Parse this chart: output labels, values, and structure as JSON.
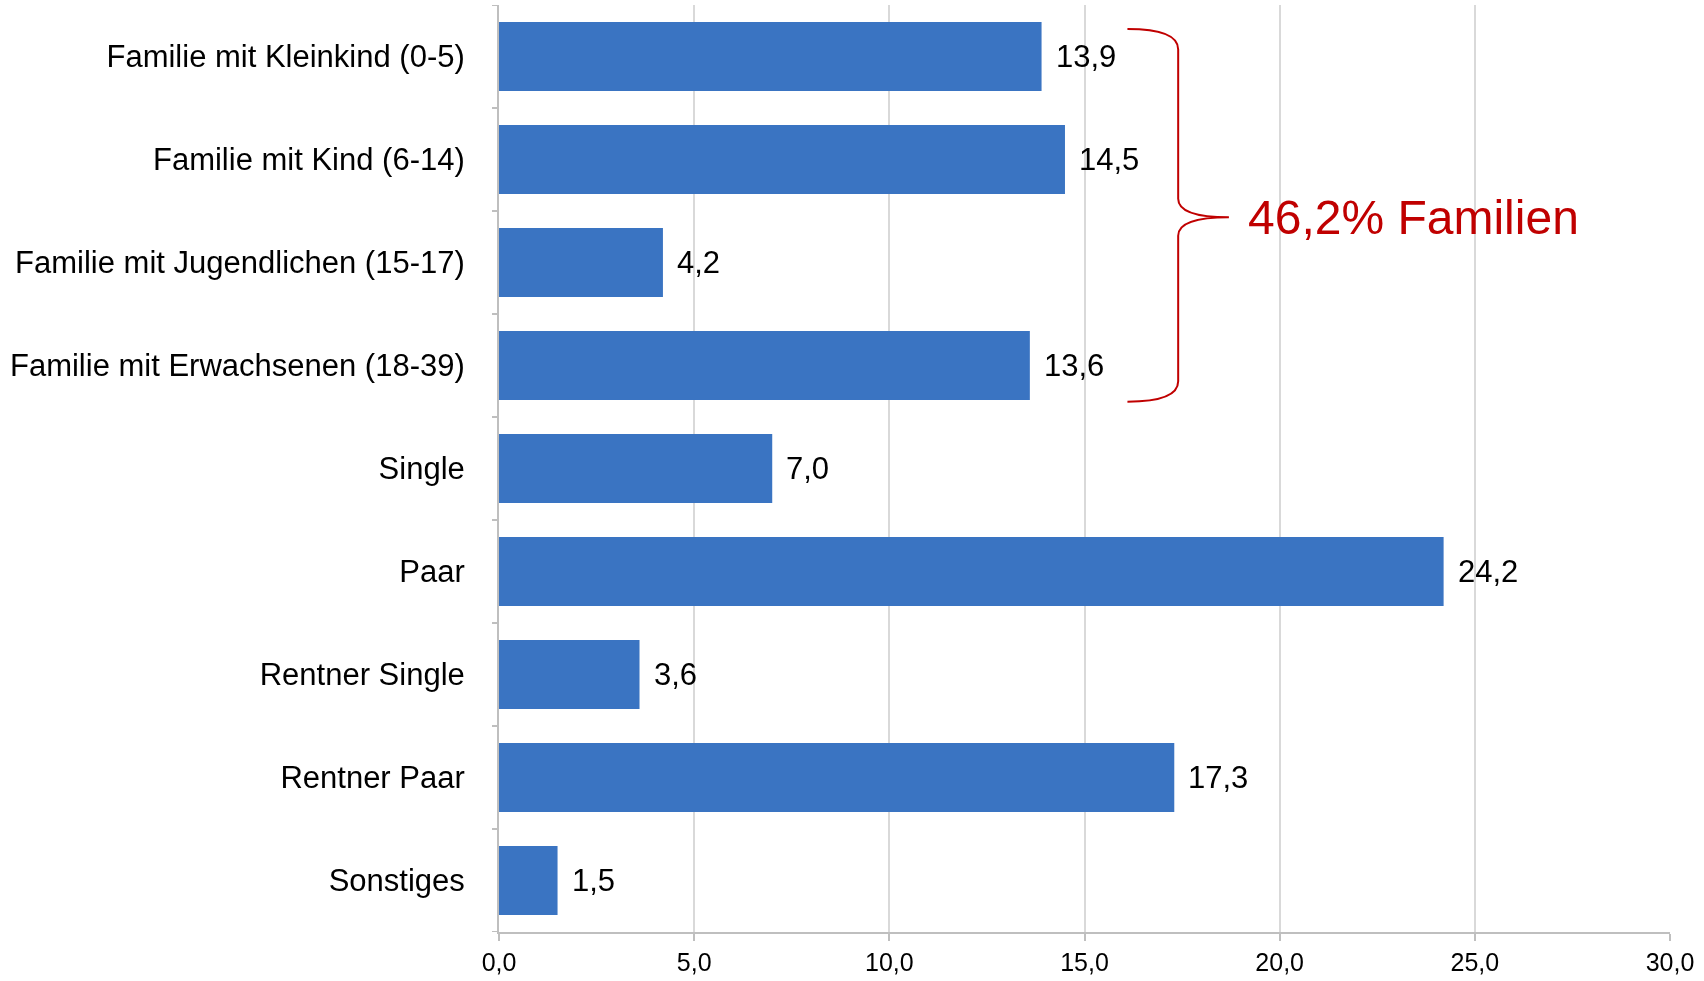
{
  "chart_data": {
    "type": "bar",
    "orientation": "horizontal",
    "categories": [
      "Familie mit Kleinkind (0-5)",
      "Familie mit Kind (6-14)",
      "Familie mit Jugendlichen (15-17)",
      "Familie mit Erwachsenen (18-39)",
      "Single",
      "Paar",
      "Rentner Single",
      "Rentner Paar",
      "Sonstiges"
    ],
    "values": [
      13.9,
      14.5,
      4.2,
      13.6,
      7.0,
      24.2,
      3.6,
      17.3,
      1.5
    ],
    "value_labels": [
      "13,9",
      "14,5",
      "4,2",
      "13,6",
      "7,0",
      "24,2",
      "3,6",
      "17,3",
      "1,5"
    ],
    "color": "#3a74c2",
    "xlim": [
      0,
      30
    ],
    "xticks": [
      {
        "value": 0,
        "label": "0,0"
      },
      {
        "value": 5,
        "label": "5,0"
      },
      {
        "value": 10,
        "label": "10,0"
      },
      {
        "value": 15,
        "label": "15,0"
      },
      {
        "value": 20,
        "label": "20,0"
      },
      {
        "value": 25,
        "label": "25,0"
      },
      {
        "value": 30,
        "label": "30,0"
      }
    ],
    "grid": "x",
    "annotations": [
      "46,2% Familien"
    ]
  }
}
